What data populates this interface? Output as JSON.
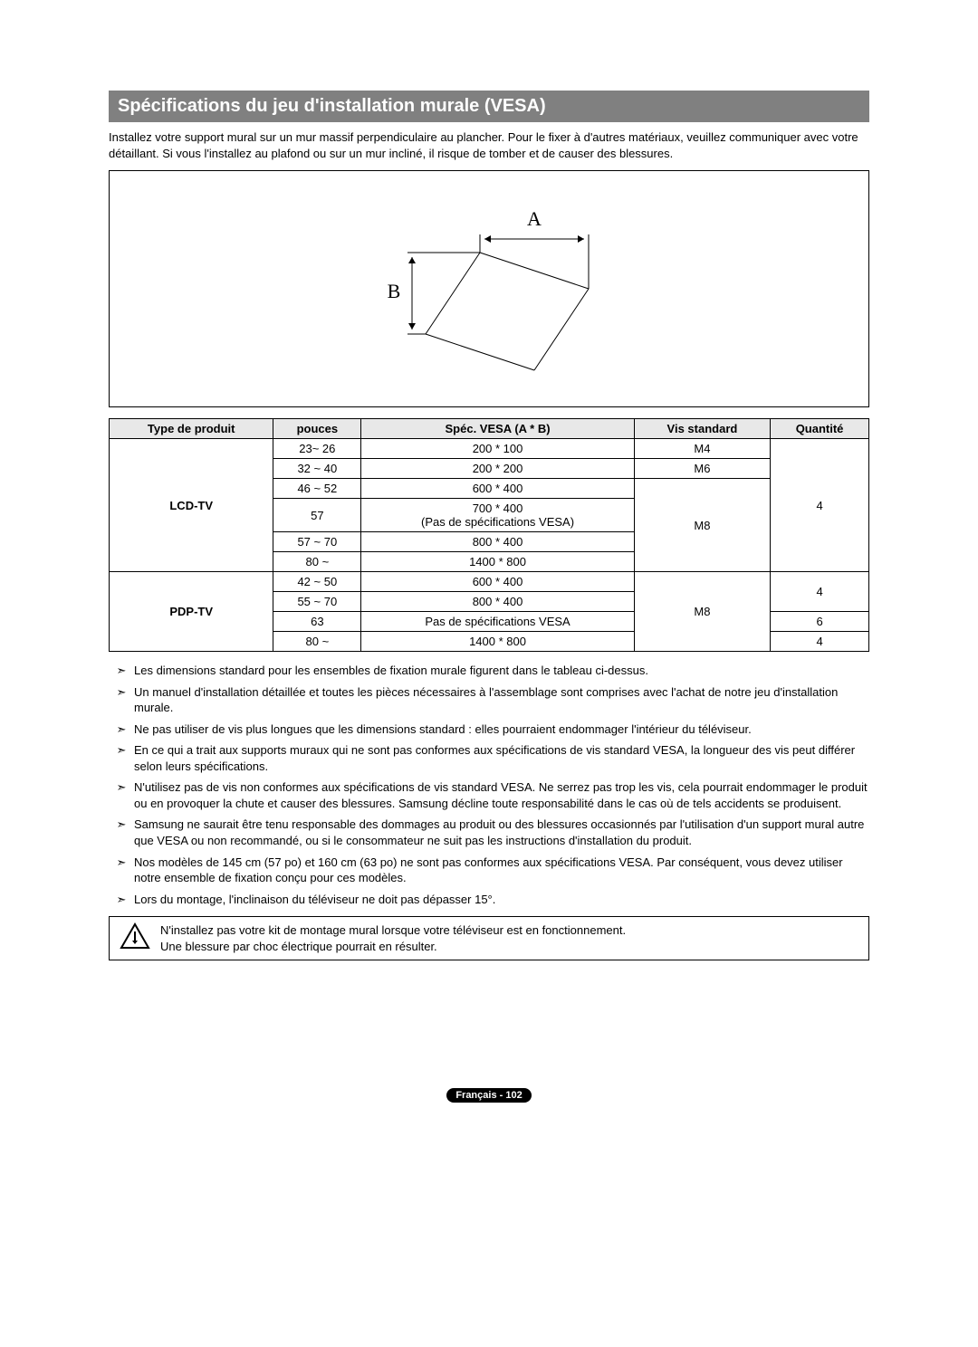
{
  "title": "Spécifications du jeu d'installation murale (VESA)",
  "intro": "Installez votre support mural sur un mur massif perpendiculaire au plancher. Pour le fixer à d'autres matériaux, veuillez communiquer avec votre détaillant. Si vous l'installez au plafond ou sur un mur incliné, il risque de tomber et de causer des blessures.",
  "diagram": {
    "label_a": "A",
    "label_b": "B"
  },
  "table": {
    "headers": [
      "Type de produit",
      "pouces",
      "Spéc. VESA (A * B)",
      "Vis standard",
      "Quantité"
    ],
    "groups": [
      {
        "product": "LCD-TV",
        "rows": [
          {
            "inches": "23~ 26",
            "vesa": "200 * 100",
            "screw": "M4",
            "qty": "4",
            "screw_rowspan": 1,
            "qty_start": true,
            "qty_rowspan": 6
          },
          {
            "inches": "32 ~ 40",
            "vesa": "200 * 200",
            "screw": "M6",
            "screw_rowspan": 1
          },
          {
            "inches": "46 ~ 52",
            "vesa": "600 * 400",
            "screw": "M8",
            "screw_rowspan": 4
          },
          {
            "inches": "57",
            "vesa": "700 * 400\n(Pas de spécifications VESA)"
          },
          {
            "inches": "57 ~ 70",
            "vesa": "800 * 400"
          },
          {
            "inches": "80 ~",
            "vesa": "1400 * 800"
          }
        ]
      },
      {
        "product": "PDP-TV",
        "rows": [
          {
            "inches": "42 ~ 50",
            "vesa": "600 * 400",
            "screw": "M8",
            "screw_rowspan": 4,
            "qty": "4",
            "qty_rowspan": 2,
            "qty_start": true
          },
          {
            "inches": "55 ~ 70",
            "vesa": "800 * 400"
          },
          {
            "inches": "63",
            "vesa": "Pas de spécifications VESA",
            "qty": "6",
            "qty_rowspan": 1,
            "qty_start": true
          },
          {
            "inches": "80 ~",
            "vesa": "1400 * 800",
            "qty": "4",
            "qty_rowspan": 1,
            "qty_start": true
          }
        ]
      }
    ]
  },
  "notes": [
    "Les dimensions standard pour les ensembles de fixation murale figurent dans le tableau ci-dessus.",
    "Un manuel d'installation détaillée et toutes les pièces nécessaires à l'assemblage sont comprises avec l'achat de notre jeu d'installation murale.",
    "Ne pas utiliser de vis plus longues que les dimensions standard : elles pourraient endommager l'intérieur du téléviseur.",
    "En ce qui a trait aux supports muraux qui ne sont pas conformes aux spécifications de vis standard VESA, la longueur des vis peut différer selon leurs spécifications.",
    "N'utilisez pas de vis non conformes aux spécifications de vis standard VESA. Ne serrez pas trop les vis, cela pourrait endommager le produit ou en provoquer la chute et causer des blessures. Samsung décline toute responsabilité dans le cas où de tels accidents se produisent.",
    "Samsung ne saurait être tenu responsable des dommages au produit ou des blessures occasionnés par l'utilisation d'un support mural autre que VESA ou non recommandé, ou si le consommateur ne suit pas les instructions d'installation du produit.",
    "Nos modèles de 145 cm (57 po) et 160 cm (63 po) ne sont pas conformes aux spécifications VESA. Par conséquent, vous devez utiliser notre ensemble de fixation conçu pour ces modèles.",
    "Lors du montage, l'inclinaison du téléviseur ne doit pas dépasser 15°."
  ],
  "warning": {
    "line1": "N'installez pas votre kit de montage mural lorsque votre téléviseur est en fonctionnement.",
    "line2": "Une blessure par choc électrique pourrait en résulter."
  },
  "footer": "Français - 102"
}
